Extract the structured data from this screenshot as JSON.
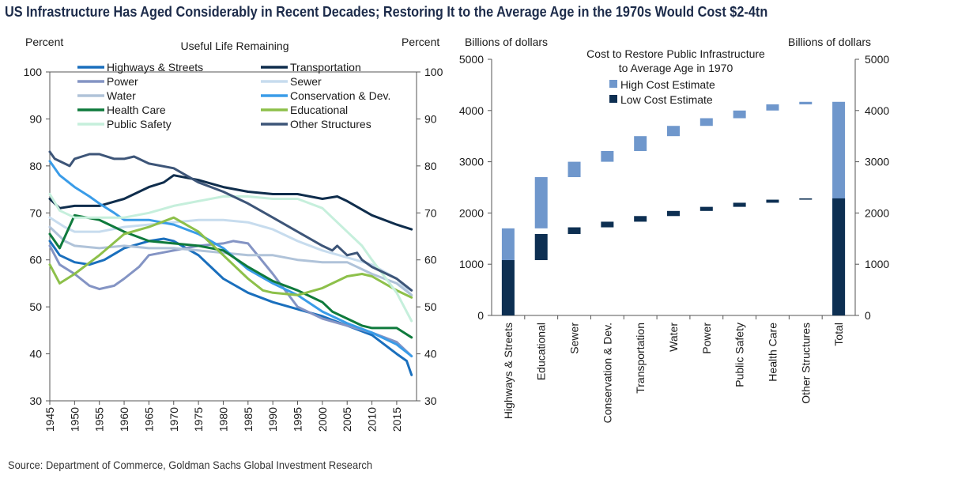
{
  "title": "US Infrastructure Has Aged Considerably in Recent Decades; Restoring It to the Average Age in the 1970s Would Cost $2-4tn",
  "source": "Source: Department of Commerce, Goldman Sachs Global Investment Research",
  "colors": {
    "highways": "#1a6fbd",
    "transportation": "#0f2d4c",
    "power": "#8494c4",
    "sewer": "#c7dcee",
    "water": "#b0c3d9",
    "conservation": "#3a9ce8",
    "healthcare": "#0f7a3c",
    "educational": "#8dc04a",
    "publicsafety": "#c6efdc",
    "otherstructures": "#3d5578",
    "high": "#6f97cc",
    "low": "#0d2f52"
  },
  "chart_data": [
    {
      "type": "line",
      "title": "Useful Life Remaining",
      "ylabel_left": "Percent",
      "ylabel_right": "Percent",
      "ylim": [
        30,
        100
      ],
      "yticks": [
        30,
        40,
        50,
        60,
        70,
        80,
        90,
        100
      ],
      "xlim": [
        1945,
        2019
      ],
      "xticks": [
        "1945",
        "1950",
        "1955",
        "1960",
        "1965",
        "1970",
        "1975",
        "1980",
        "1985",
        "1990",
        "1995",
        "2000",
        "2005",
        "2010",
        "2015"
      ],
      "legend_position": "top",
      "series": [
        {
          "name": "Highways & Streets",
          "color_key": "highways",
          "width": 3,
          "x": [
            1945,
            1947,
            1950,
            1953,
            1956,
            1960,
            1965,
            1968,
            1970,
            1975,
            1980,
            1985,
            1990,
            1995,
            2000,
            2005,
            2010,
            2015,
            2017,
            2018
          ],
          "y": [
            64,
            61,
            59.5,
            59,
            60,
            62.5,
            64,
            64.5,
            64,
            61,
            56,
            53,
            51,
            49.5,
            48,
            46,
            44,
            40,
            38.5,
            35.5
          ]
        },
        {
          "name": "Transportation",
          "color_key": "transportation",
          "width": 3,
          "x": [
            1945,
            1947,
            1950,
            1955,
            1960,
            1965,
            1968,
            1970,
            1975,
            1980,
            1985,
            1990,
            1995,
            2000,
            2003,
            2005,
            2010,
            2015,
            2018
          ],
          "y": [
            73,
            71,
            71.5,
            71.5,
            73,
            75.5,
            76.5,
            78,
            77,
            75.5,
            74.5,
            74,
            74,
            73,
            73.5,
            72.5,
            69.5,
            67.5,
            66.5
          ]
        },
        {
          "name": "Power",
          "color_key": "power",
          "width": 3,
          "x": [
            1945,
            1947,
            1950,
            1953,
            1955,
            1958,
            1960,
            1963,
            1965,
            1970,
            1975,
            1980,
            1982,
            1985,
            1990,
            1995,
            2000,
            2005,
            2010,
            2015,
            2018
          ],
          "y": [
            63,
            59,
            57,
            54.5,
            53.8,
            54.5,
            56,
            58.5,
            61,
            62,
            63,
            63.5,
            64,
            63.5,
            57,
            50,
            47.5,
            46,
            44.5,
            42.5,
            39.5
          ]
        },
        {
          "name": "Sewer",
          "color_key": "sewer",
          "width": 3,
          "x": [
            1945,
            1948,
            1950,
            1955,
            1960,
            1965,
            1970,
            1975,
            1980,
            1985,
            1990,
            1995,
            2000,
            2005,
            2010,
            2015,
            2018
          ],
          "y": [
            69,
            67,
            66,
            66,
            67,
            67.5,
            68,
            68.5,
            68.5,
            68,
            66.5,
            64,
            62,
            60.5,
            59,
            56,
            52.5
          ]
        },
        {
          "name": "Water",
          "color_key": "water",
          "width": 3,
          "x": [
            1945,
            1948,
            1950,
            1955,
            1960,
            1965,
            1970,
            1975,
            1980,
            1985,
            1990,
            1995,
            2000,
            2005,
            2010,
            2015,
            2018
          ],
          "y": [
            67,
            64,
            63,
            62.5,
            63,
            62.5,
            62.5,
            62,
            61.5,
            61,
            61,
            60,
            59.5,
            59.5,
            57,
            55,
            52.5
          ]
        },
        {
          "name": "Conservation & Dev.",
          "color_key": "conservation",
          "width": 3,
          "x": [
            1945,
            1947,
            1950,
            1953,
            1955,
            1958,
            1960,
            1965,
            1970,
            1975,
            1980,
            1985,
            1990,
            1995,
            2000,
            2005,
            2010,
            2015,
            2018
          ],
          "y": [
            81,
            78,
            75.5,
            73.5,
            72,
            70,
            68.5,
            68.5,
            67.5,
            65.5,
            62.5,
            58,
            55,
            52.5,
            49,
            46.5,
            44.5,
            42,
            39.5
          ]
        },
        {
          "name": "Health Care",
          "color_key": "healthcare",
          "width": 3,
          "x": [
            1945,
            1947,
            1950,
            1955,
            1960,
            1965,
            1970,
            1975,
            1980,
            1985,
            1990,
            1995,
            2000,
            2002,
            2005,
            2008,
            2010,
            2015,
            2018
          ],
          "y": [
            65.5,
            62.5,
            69.5,
            68.5,
            66,
            64,
            63.5,
            63,
            62,
            58.5,
            55.5,
            53.5,
            51,
            49,
            47.5,
            46,
            45.5,
            45.5,
            43.5
          ]
        },
        {
          "name": "Educational",
          "color_key": "educational",
          "width": 3,
          "x": [
            1945,
            1947,
            1950,
            1955,
            1960,
            1965,
            1970,
            1975,
            1980,
            1985,
            1988,
            1990,
            1995,
            2000,
            2005,
            2008,
            2010,
            2015,
            2018
          ],
          "y": [
            59,
            55,
            57,
            61,
            65.5,
            67,
            69,
            66,
            61,
            56,
            53.5,
            53,
            52.5,
            54,
            56.5,
            57,
            56.5,
            53.5,
            52
          ]
        },
        {
          "name": "Public Safety",
          "color_key": "publicsafety",
          "width": 3,
          "x": [
            1945,
            1947,
            1950,
            1955,
            1960,
            1965,
            1970,
            1975,
            1980,
            1985,
            1990,
            1995,
            2000,
            2005,
            2008,
            2010,
            2015,
            2018
          ],
          "y": [
            74,
            70.5,
            69,
            69,
            69,
            70,
            71.5,
            72.5,
            73.5,
            73.5,
            73,
            73,
            71,
            66,
            63,
            60,
            53,
            47
          ]
        },
        {
          "name": "Other Structures",
          "color_key": "otherstructures",
          "width": 3,
          "x": [
            1945,
            1946,
            1948,
            1949,
            1950,
            1953,
            1955,
            1958,
            1960,
            1962,
            1965,
            1970,
            1975,
            1980,
            1985,
            1990,
            1995,
            2000,
            2002,
            2003,
            2005,
            2007,
            2008,
            2010,
            2015,
            2018
          ],
          "y": [
            83,
            81.5,
            80.5,
            80,
            81.5,
            82.5,
            82.5,
            81.5,
            81.5,
            82,
            80.5,
            79.5,
            76.5,
            74.5,
            72,
            69,
            66,
            63,
            62,
            63,
            61,
            61.5,
            60,
            58.5,
            56,
            53.5
          ]
        }
      ]
    },
    {
      "type": "bar",
      "subtype": "waterfall",
      "title_lines": [
        "Cost to Restore Public Infrastructure",
        "to Average  Age in 1970"
      ],
      "ylabel_left": "Billions of dollars",
      "ylabel_right": "Billions of dollars",
      "ylim": [
        0,
        5000
      ],
      "yticks": [
        0,
        1000,
        2000,
        3000,
        4000,
        5000
      ],
      "legend_position": "top",
      "legend": {
        "high": "High Cost Estimate",
        "low": "Low Cost Estimate"
      },
      "categories": [
        "Highways & Streets",
        "Educational",
        "Sewer",
        "Conservation & Dev.",
        "Transportation",
        "Water",
        "Power",
        "Public Safety",
        "Health Care",
        "Other Structures",
        "Total"
      ],
      "series": [
        {
          "name": "High Cost Estimate",
          "color_key": "high",
          "ranges": [
            [
              0,
              1700
            ],
            [
              1700,
              2700
            ],
            [
              2700,
              3000
            ],
            [
              3000,
              3210
            ],
            [
              3210,
              3500
            ],
            [
              3500,
              3700
            ],
            [
              3700,
              3850
            ],
            [
              3850,
              4000
            ],
            [
              4000,
              4120
            ],
            [
              4120,
              4170
            ],
            [
              0,
              4170
            ]
          ]
        },
        {
          "name": "Low Cost Estimate",
          "color_key": "low",
          "ranges": [
            [
              0,
              1080
            ],
            [
              1080,
              1590
            ],
            [
              1590,
              1720
            ],
            [
              1720,
              1830
            ],
            [
              1830,
              1940
            ],
            [
              1940,
              2040
            ],
            [
              2040,
              2120
            ],
            [
              2120,
              2200
            ],
            [
              2200,
              2260
            ],
            [
              2260,
              2285
            ],
            [
              0,
              2285
            ]
          ]
        }
      ]
    }
  ]
}
